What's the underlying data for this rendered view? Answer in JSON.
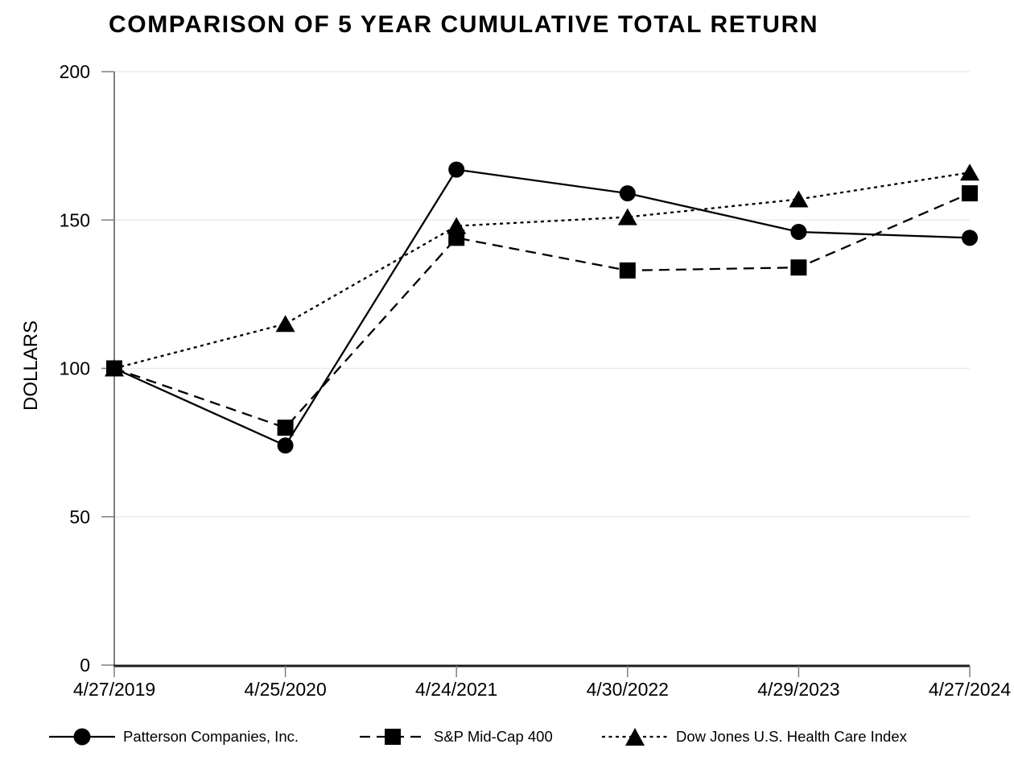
{
  "chart_data": {
    "type": "line",
    "title": "COMPARISON OF 5 YEAR CUMULATIVE TOTAL RETURN",
    "xlabel": "",
    "ylabel": "DOLLARS",
    "categories": [
      "4/27/2019",
      "4/25/2020",
      "4/24/2021",
      "4/30/2022",
      "4/29/2023",
      "4/27/2024"
    ],
    "ylim": [
      0,
      200
    ],
    "yticks": [
      0,
      50,
      100,
      150,
      200
    ],
    "grid": true,
    "legend_position": "bottom",
    "series": [
      {
        "name": "Patterson Companies, Inc.",
        "marker": "circle",
        "line_style": "solid",
        "color": "#000000",
        "values": [
          100,
          74,
          167,
          159,
          146,
          144
        ]
      },
      {
        "name": "S&P Mid-Cap 400",
        "marker": "square",
        "line_style": "dashed",
        "color": "#000000",
        "values": [
          100,
          80,
          144,
          133,
          134,
          159
        ]
      },
      {
        "name": "Dow Jones U.S. Health Care Index",
        "marker": "triangle",
        "line_style": "dotted",
        "color": "#000000",
        "values": [
          100,
          115,
          148,
          151,
          157,
          166
        ]
      }
    ]
  },
  "colors": {
    "background": "#ffffff",
    "text": "#000000",
    "axis": "#7f7f7f",
    "grid": "#ebebeb",
    "x_axis_line": "#1c1c1c",
    "series": "#000000"
  }
}
